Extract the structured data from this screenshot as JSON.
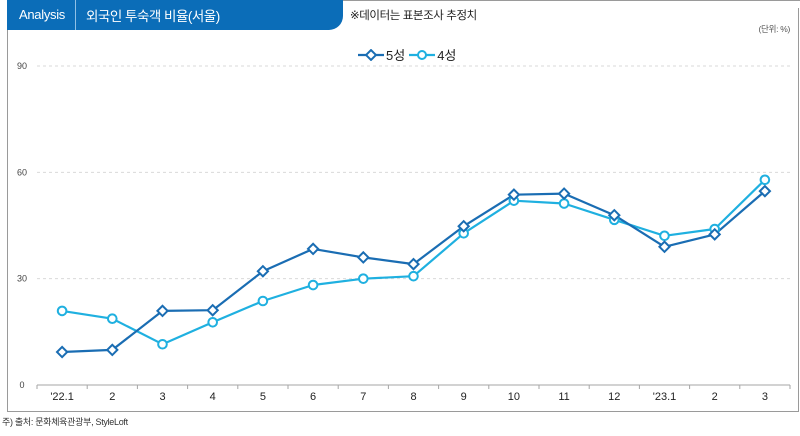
{
  "header": {
    "tag": "Analysis",
    "title": "외국인 투숙객 비율(서울)",
    "note": "※데이터는 표본조사 추정치",
    "unit": "(단위: %)"
  },
  "footer": {
    "source": "주) 출처: 문화체육관광부, StyleLoft"
  },
  "colors": {
    "header_bg": "#0b6db8",
    "series_5": "#1a6db3",
    "series_4": "#1fb0e0",
    "grid": "#d9d9d9",
    "axis": "#a6a6a6"
  },
  "chart_data": {
    "type": "line",
    "title": "외국인 투숙객 비율(서울)",
    "xlabel": "",
    "ylabel": "",
    "ylim": [
      0,
      90
    ],
    "yticks": [
      "0",
      "30",
      "60",
      "90"
    ],
    "ytick_values": [
      0,
      30,
      60,
      90
    ],
    "grid": true,
    "legend_placement": "top-center",
    "categories": [
      "'22.1",
      "2",
      "3",
      "4",
      "5",
      "6",
      "7",
      "8",
      "9",
      "10",
      "11",
      "12",
      "'23.1",
      "2",
      "3"
    ],
    "series": [
      {
        "name": "5성",
        "marker": "diamond",
        "values": [
          9.3,
          9.9,
          20.9,
          21.1,
          32.1,
          38.4,
          36.0,
          34.1,
          44.8,
          53.7,
          54.0,
          47.9,
          39.0,
          42.5,
          54.7
        ]
      },
      {
        "name": "4성",
        "marker": "circle",
        "values": [
          20.9,
          18.7,
          11.5,
          17.7,
          23.7,
          28.2,
          30.0,
          30.7,
          42.8,
          52.0,
          51.2,
          46.6,
          42.1,
          44.0,
          57.9
        ]
      }
    ]
  }
}
